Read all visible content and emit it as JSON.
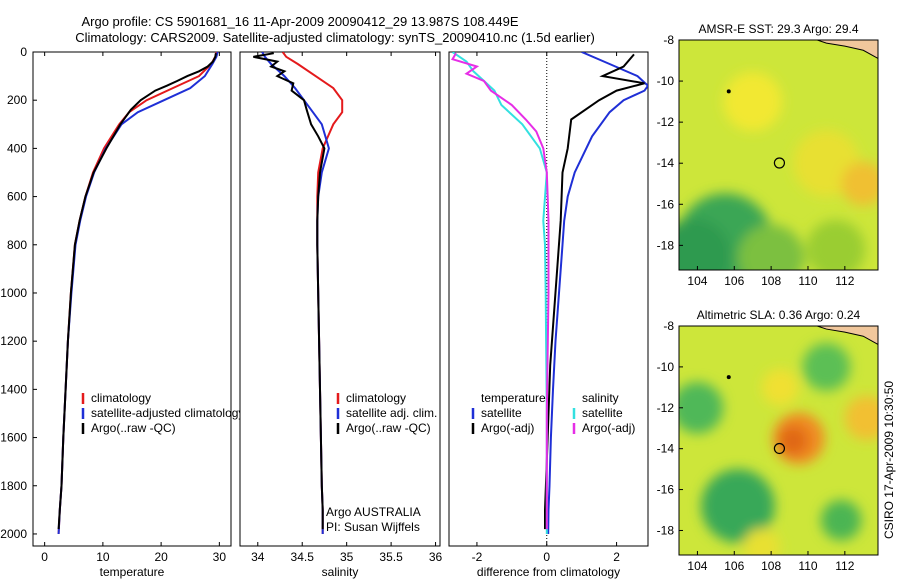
{
  "title": {
    "line1": "Argo profile: CS 5901681_16 11-Apr-2009 20090412_29 13.987S 108.449E",
    "line2": "Climatology: CARS2009. Satellite-adjusted climatology: synTS_20090410.nc (1.5d earlier)"
  },
  "side_label": "CSIRO 17-Apr-2009 10:30:50",
  "colors": {
    "climatology": "#e41a1c",
    "satellite": "#1f2fd6",
    "argo": "#000000",
    "salinity_satellite": "#33e0e0",
    "salinity_argo": "#e62ee6"
  },
  "chart_data": [
    {
      "type": "line",
      "name": "temperature",
      "xlabel": "temperature",
      "xlim": [
        -2,
        32
      ],
      "ylim": [
        2050,
        0
      ],
      "xticks": [
        0,
        10,
        20,
        30
      ],
      "yticks": [
        0,
        200,
        400,
        600,
        800,
        1000,
        1200,
        1400,
        1600,
        1800,
        2000
      ],
      "legend": [
        "climatology",
        "satellite-adjusted climatology",
        "Argo(..raw -QC)"
      ],
      "series": [
        {
          "name": "climatology",
          "color": "#e41a1c",
          "x": [
            29.5,
            29.3,
            28.6,
            26.5,
            22.0,
            17.5,
            14.5,
            12.8,
            10.2,
            8.3,
            7.0,
            6.0,
            5.2,
            4.5,
            4.0,
            3.6,
            3.2,
            2.9,
            2.6,
            2.4
          ],
          "y": [
            0,
            20,
            50,
            100,
            150,
            200,
            250,
            300,
            400,
            500,
            600,
            700,
            800,
            1000,
            1200,
            1400,
            1600,
            1800,
            1900,
            2000
          ]
        },
        {
          "name": "satellite",
          "color": "#1f2fd6",
          "x": [
            29.7,
            29.5,
            28.8,
            27.5,
            25.0,
            20.5,
            16.0,
            13.2,
            10.5,
            8.5,
            7.1,
            6.1,
            5.3,
            4.6,
            4.0,
            3.6,
            3.2,
            2.9,
            2.6,
            2.4
          ],
          "y": [
            0,
            20,
            50,
            100,
            150,
            200,
            250,
            300,
            400,
            500,
            600,
            700,
            800,
            1000,
            1200,
            1400,
            1600,
            1800,
            1900,
            2000
          ]
        },
        {
          "name": "argo",
          "color": "#000000",
          "x": [
            29.4,
            29.3,
            28.9,
            28.0,
            26.5,
            24.5,
            22.8,
            21.0,
            19.0,
            16.5,
            14.8,
            13.0,
            10.6,
            8.4,
            7.0,
            6.0,
            5.2,
            4.5,
            4.0,
            3.6,
            3.2,
            2.9,
            2.6,
            2.4
          ],
          "y": [
            5,
            20,
            40,
            60,
            80,
            100,
            120,
            140,
            160,
            200,
            240,
            300,
            400,
            500,
            600,
            700,
            800,
            1000,
            1200,
            1400,
            1600,
            1800,
            1900,
            1980
          ]
        }
      ]
    },
    {
      "type": "line",
      "name": "salinity",
      "xlabel": "salinity",
      "xlim": [
        33.8,
        36.05
      ],
      "ylim": [
        2050,
        0
      ],
      "xticks": [
        34,
        34.5,
        35,
        35.5,
        36
      ],
      "legend": [
        "climatology",
        "satellite adj. clim.",
        "Argo(..raw -QC)"
      ],
      "annotations": [
        "Argo AUSTRALIA",
        "PI: Susan Wijffels"
      ],
      "series": [
        {
          "name": "climatology",
          "color": "#e41a1c",
          "x": [
            34.28,
            34.32,
            34.45,
            34.65,
            34.85,
            34.95,
            34.95,
            34.85,
            34.73,
            34.68,
            34.67,
            34.67,
            34.67,
            34.68,
            34.69,
            34.7,
            34.71,
            34.72,
            34.73,
            34.73
          ],
          "y": [
            0,
            20,
            50,
            100,
            150,
            200,
            250,
            300,
            400,
            500,
            600,
            700,
            800,
            1000,
            1200,
            1400,
            1600,
            1800,
            1900,
            2000
          ]
        },
        {
          "name": "satellite",
          "color": "#1f2fd6",
          "x": [
            34.05,
            34.08,
            34.15,
            34.3,
            34.42,
            34.52,
            34.62,
            34.72,
            34.8,
            34.72,
            34.68,
            34.67,
            34.67,
            34.68,
            34.69,
            34.7,
            34.71,
            34.72,
            34.73,
            34.73
          ],
          "y": [
            0,
            20,
            50,
            100,
            150,
            200,
            250,
            300,
            400,
            500,
            600,
            700,
            800,
            1000,
            1200,
            1400,
            1600,
            1800,
            1900,
            2000
          ]
        },
        {
          "name": "argo",
          "color": "#000000",
          "x": [
            34.18,
            33.95,
            34.22,
            34.15,
            34.3,
            34.22,
            34.4,
            34.38,
            34.52,
            34.55,
            34.6,
            34.68,
            34.75,
            34.7,
            34.68,
            34.67,
            34.67,
            34.68,
            34.69,
            34.7,
            34.71,
            34.72,
            34.73,
            34.73
          ],
          "y": [
            5,
            20,
            40,
            60,
            80,
            100,
            130,
            160,
            200,
            240,
            300,
            350,
            400,
            500,
            600,
            700,
            800,
            1000,
            1200,
            1400,
            1600,
            1800,
            1900,
            1980
          ]
        }
      ]
    },
    {
      "type": "line",
      "name": "difference",
      "xlabel": "difference from climatology",
      "xlim": [
        -2.8,
        2.9
      ],
      "ylim": [
        2050,
        0
      ],
      "xticks": [
        -2,
        0,
        2
      ],
      "legend_left_title": "temperature",
      "legend_left": [
        "satellite",
        "Argo(-adj)"
      ],
      "legend_right_title": "salinity",
      "legend_right": [
        "satellite",
        "Argo(-adj)"
      ],
      "series": [
        {
          "name": "temperature satellite",
          "color": "#1f2fd6",
          "x": [
            1.0,
            1.8,
            2.6,
            2.9,
            2.8,
            2.2,
            1.8,
            1.3,
            0.8,
            0.6,
            0.5,
            0.45,
            0.35,
            0.25,
            0.18,
            0.12,
            0.08,
            0.05,
            0.04
          ],
          "y": [
            0,
            50,
            100,
            140,
            160,
            200,
            250,
            350,
            500,
            600,
            700,
            800,
            1000,
            1200,
            1400,
            1600,
            1800,
            1900,
            2000
          ]
        },
        {
          "name": "temperature argo",
          "color": "#000000",
          "x": [
            2.5,
            2.2,
            1.6,
            2.8,
            2.0,
            1.5,
            0.7,
            0.6,
            0.45,
            0.4,
            0.3,
            0.2,
            0.1,
            0.05,
            0.0,
            -0.05,
            -0.05
          ],
          "y": [
            10,
            60,
            100,
            130,
            160,
            200,
            280,
            400,
            500,
            700,
            900,
            1100,
            1300,
            1500,
            1700,
            1900,
            1980
          ]
        },
        {
          "name": "salinity satellite",
          "color": "#33e0e0",
          "x": [
            -2.7,
            -2.3,
            -2.1,
            -1.8,
            -1.5,
            -1.3,
            -0.7,
            -0.2,
            0.0,
            -0.1,
            -0.05,
            -0.03,
            -0.02,
            0.0,
            0.0,
            0.0
          ],
          "y": [
            0,
            40,
            80,
            120,
            160,
            220,
            300,
            400,
            500,
            700,
            800,
            1000,
            1200,
            1500,
            1800,
            2000
          ]
        },
        {
          "name": "salinity argo",
          "color": "#e62ee6",
          "x": [
            -2.6,
            -2.7,
            -2.0,
            -2.3,
            -1.8,
            -1.6,
            -1.0,
            -0.6,
            -0.3,
            -0.1,
            0.0,
            0.05,
            0.05,
            0.0,
            0.0
          ],
          "y": [
            5,
            30,
            60,
            90,
            120,
            160,
            220,
            280,
            330,
            400,
            500,
            700,
            1000,
            1500,
            1980
          ]
        }
      ]
    },
    {
      "type": "heatmap",
      "name": "sst_map",
      "title": "AMSR-E SST: 29.3 Argo: 29.4",
      "xlim": [
        103,
        113.8
      ],
      "ylim": [
        -19.2,
        -8
      ],
      "xticks": [
        104,
        106,
        108,
        110,
        112
      ],
      "yticks": [
        -8,
        -10,
        -12,
        -14,
        -16,
        -18
      ],
      "float_marker": {
        "lon": 108.45,
        "lat": -13.99
      },
      "small_marker": {
        "lon": 105.7,
        "lat": -10.5
      },
      "blobs": [
        {
          "lon": 105.5,
          "lat": -17.8,
          "r": 2.6,
          "color": "#3aa655"
        },
        {
          "lon": 103.8,
          "lat": -18.5,
          "r": 2.0,
          "color": "#2f9a50"
        },
        {
          "lon": 108.0,
          "lat": -18.6,
          "r": 1.8,
          "color": "#7cc040"
        },
        {
          "lon": 111.5,
          "lat": -18.2,
          "r": 1.6,
          "color": "#9acd32"
        },
        {
          "lon": 111.0,
          "lat": -14.0,
          "r": 1.8,
          "color": "#e8e030"
        },
        {
          "lon": 113.0,
          "lat": -15.0,
          "r": 1.2,
          "color": "#f0c030"
        },
        {
          "lon": 107.0,
          "lat": -11.0,
          "r": 1.6,
          "color": "#f2e830"
        }
      ]
    },
    {
      "type": "heatmap",
      "name": "sla_map",
      "title": "Altimetric SLA: 0.36 Argo: 0.24",
      "xlim": [
        103,
        113.8
      ],
      "ylim": [
        -19.2,
        -8
      ],
      "xticks": [
        104,
        106,
        108,
        110,
        112
      ],
      "yticks": [
        -8,
        -10,
        -12,
        -14,
        -16,
        -18
      ],
      "float_marker": {
        "lon": 108.45,
        "lat": -13.99
      },
      "small_marker": {
        "lon": 105.7,
        "lat": -10.5
      },
      "blobs": [
        {
          "lon": 106.2,
          "lat": -16.8,
          "r": 2.0,
          "color": "#38a858"
        },
        {
          "lon": 104.0,
          "lat": -12.0,
          "r": 1.4,
          "color": "#4fb858"
        },
        {
          "lon": 109.5,
          "lat": -13.5,
          "r": 1.4,
          "color": "#f08a20"
        },
        {
          "lon": 109.2,
          "lat": -13.6,
          "r": 0.8,
          "color": "#e06818"
        },
        {
          "lon": 111.0,
          "lat": -10.0,
          "r": 1.3,
          "color": "#5cbf55"
        },
        {
          "lon": 111.8,
          "lat": -17.5,
          "r": 1.1,
          "color": "#4bb553"
        },
        {
          "lon": 113.2,
          "lat": -12.5,
          "r": 1.2,
          "color": "#f2c030"
        },
        {
          "lon": 108.5,
          "lat": -11.0,
          "r": 1.0,
          "color": "#f0e030"
        },
        {
          "lon": 107.5,
          "lat": -18.8,
          "r": 1.0,
          "color": "#e8e030"
        }
      ]
    }
  ]
}
